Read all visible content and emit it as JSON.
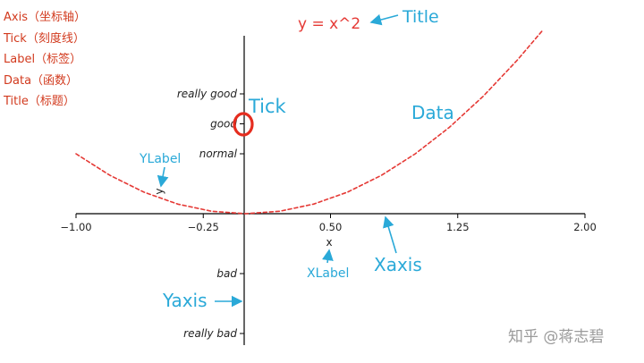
{
  "legend": {
    "items": [
      "Axis（坐标轴）",
      "Tick（刻度线）",
      "Label（标签）",
      "Data（函数）",
      "Title（标题）"
    ]
  },
  "annotations": {
    "title": "Title",
    "tick": "Tick",
    "data": "Data",
    "ylabel": "YLabel",
    "xlabel": "XLabel",
    "xaxis": "Xaxis",
    "yaxis": "Yaxis"
  },
  "watermark": "知乎 @蒋志碧",
  "colors": {
    "annotation_blue": "#2aa9d8",
    "legend_red": "#d23a1e",
    "curve": "#e53935",
    "title_red": "#e53935"
  },
  "chart_data": {
    "type": "line",
    "title": "y = x^2",
    "xlabel": "x",
    "ylabel": "y",
    "xlim": [
      -1.0,
      2.0
    ],
    "ylim": [
      -2.2,
      3.0
    ],
    "x_ticks": [
      -1.0,
      -0.25,
      0.5,
      1.25,
      2.0
    ],
    "x_tick_labels": [
      "−1.00",
      "−0.25",
      "0.50",
      "1.25",
      "2.00"
    ],
    "y_ticks": [
      -2,
      -1,
      1,
      1.5,
      2
    ],
    "y_tick_labels": [
      "really bad",
      "bad",
      "normal",
      "good",
      "really good"
    ],
    "series": [
      {
        "x": [
          -1.0,
          -0.8,
          -0.6,
          -0.4,
          -0.2,
          0.0,
          0.2,
          0.4,
          0.6,
          0.8,
          1.0,
          1.2,
          1.4,
          1.6,
          1.75
        ],
        "y": [
          1.0,
          0.64,
          0.36,
          0.16,
          0.04,
          0.0,
          0.04,
          0.16,
          0.36,
          0.64,
          1.0,
          1.44,
          1.96,
          2.56,
          3.06
        ]
      }
    ],
    "grid": false,
    "line_style": "dashed"
  }
}
